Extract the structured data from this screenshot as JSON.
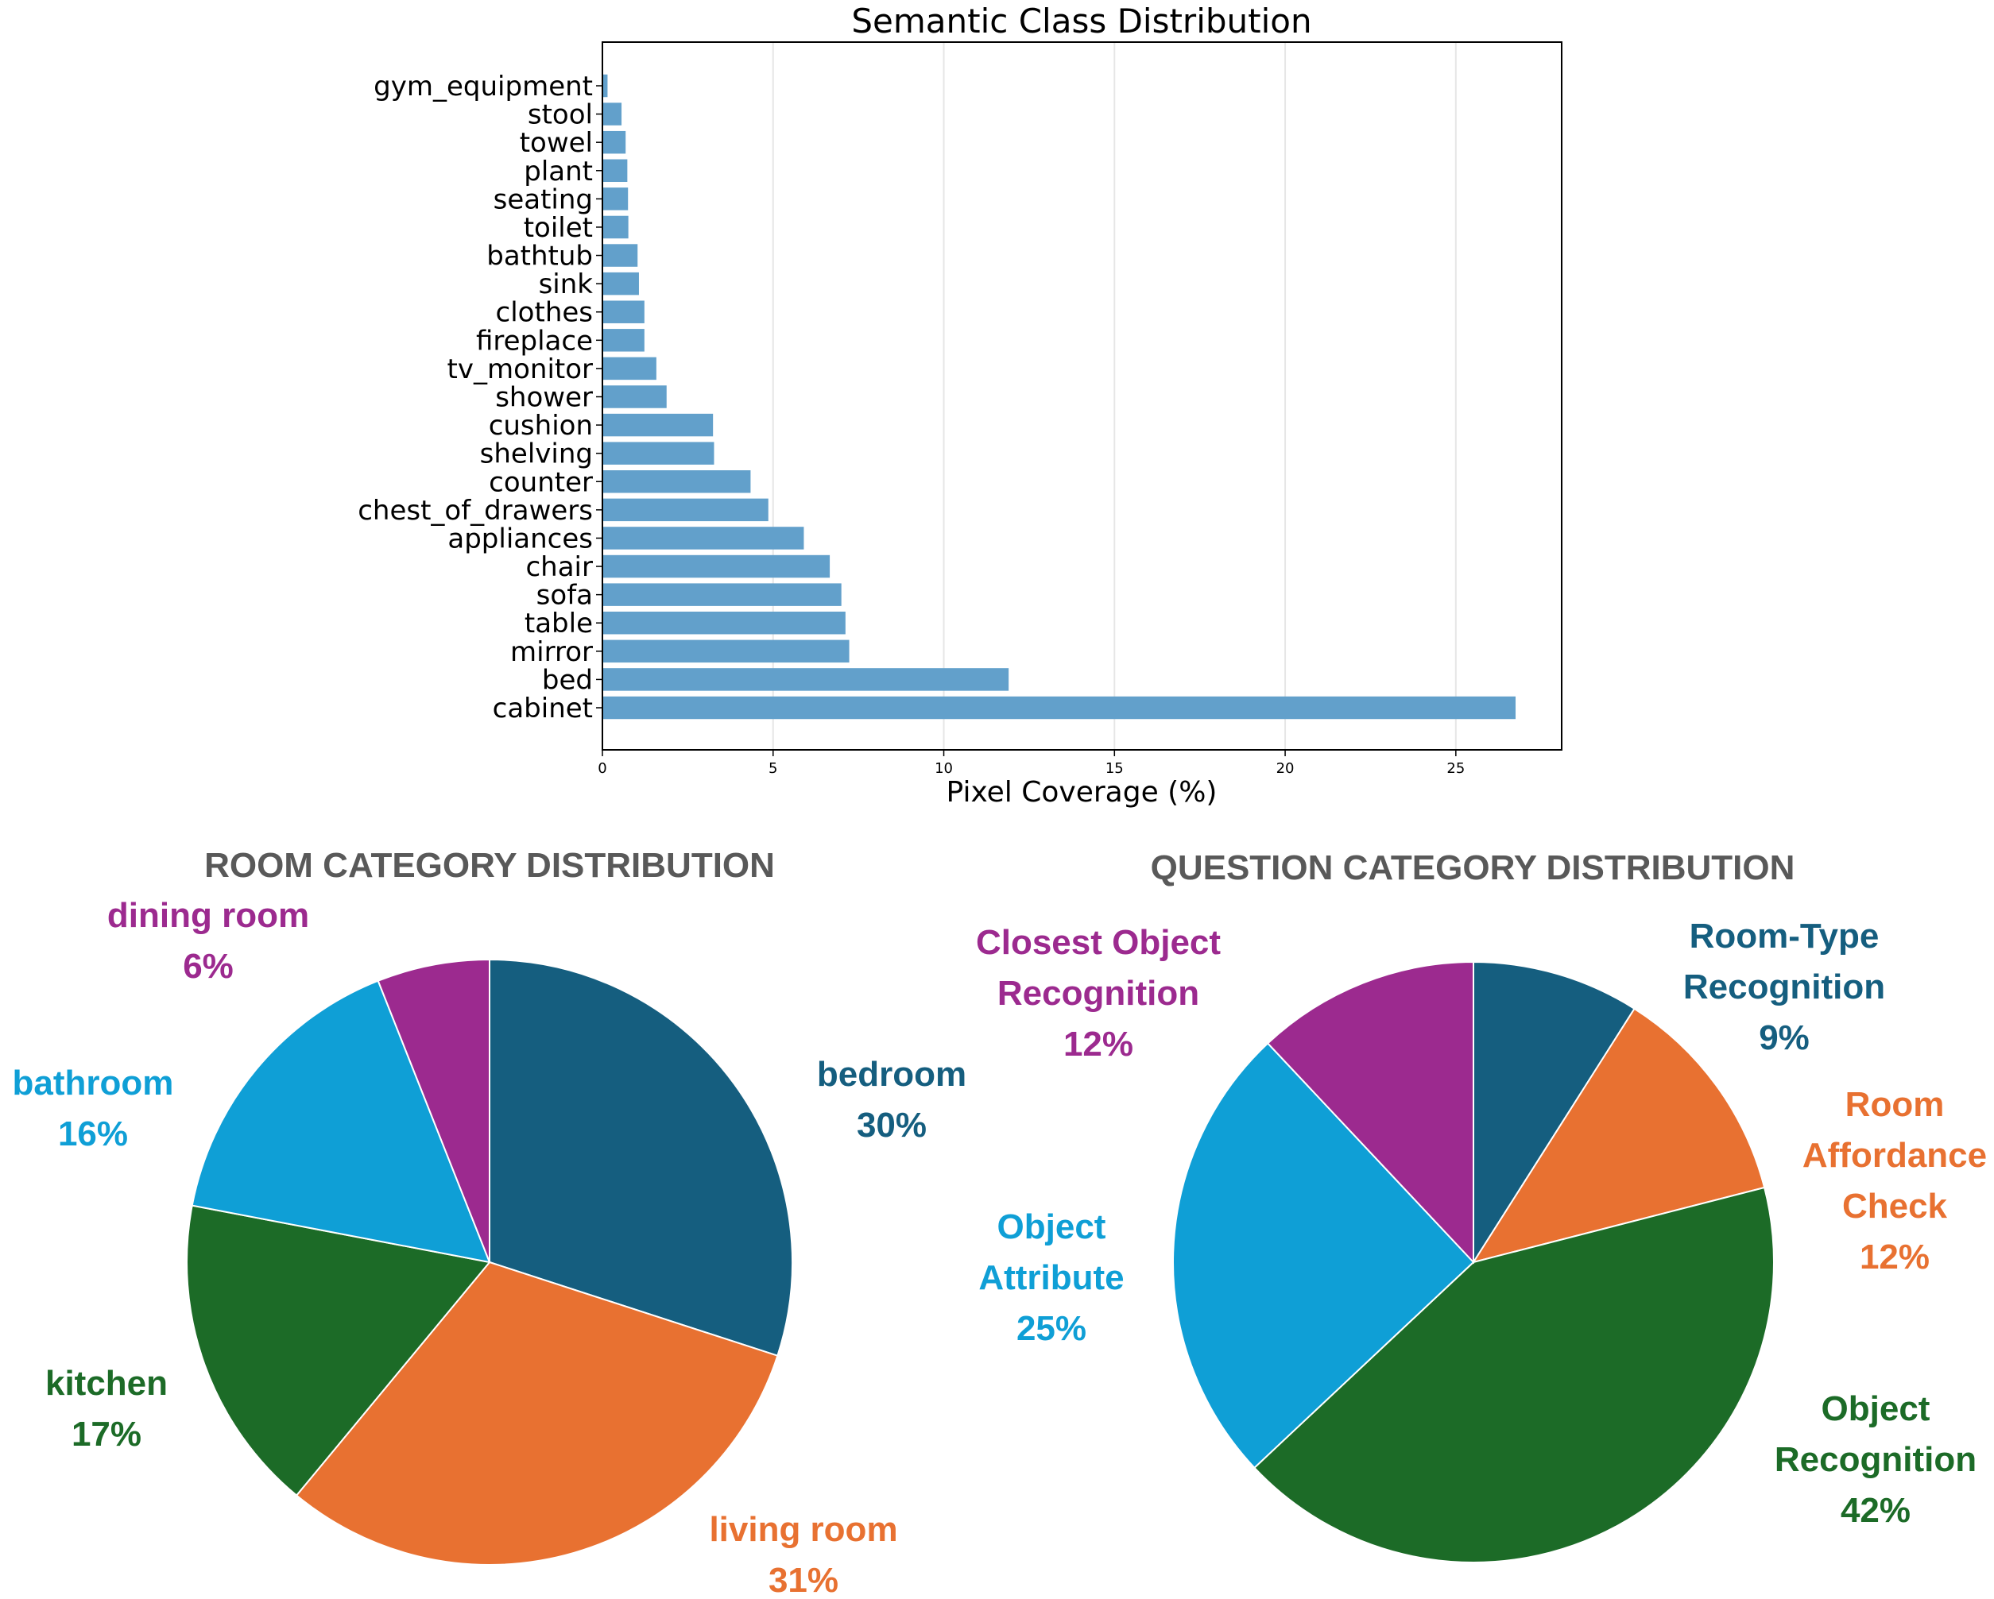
{
  "colors": {
    "bar": "#62A0CB",
    "dark_blue": "#155E7F",
    "orange": "#E87131",
    "green": "#1C6B27",
    "light_blue": "#0F9FD6",
    "purple": "#9C2A8F",
    "pie_title": "#595959"
  },
  "chart_data": [
    {
      "type": "bar",
      "orientation": "horizontal",
      "title": "Semantic Class Distribution",
      "xlabel": "Pixel Coverage (%)",
      "ylabel": "",
      "xlim": [
        0,
        28.1
      ],
      "xticks": [
        0,
        5,
        10,
        15,
        20,
        25
      ],
      "grid": "vertical",
      "categories": [
        "cabinet",
        "bed",
        "mirror",
        "table",
        "sofa",
        "chair",
        "appliances",
        "chest_of_drawers",
        "counter",
        "shelving",
        "cushion",
        "shower",
        "tv_monitor",
        "fireplace",
        "clothes",
        "sink",
        "bathtub",
        "toilet",
        "seating",
        "plant",
        "towel",
        "stool",
        "gym_equipment"
      ],
      "values": [
        26.75,
        11.9,
        7.23,
        7.12,
        7.0,
        6.66,
        5.9,
        4.86,
        4.34,
        3.27,
        3.24,
        1.88,
        1.58,
        1.23,
        1.23,
        1.07,
        1.03,
        0.76,
        0.75,
        0.73,
        0.68,
        0.56,
        0.15
      ]
    },
    {
      "type": "pie",
      "title": "ROOM CATEGORY DISTRIBUTION",
      "start": "top",
      "direction": "clockwise",
      "slices": [
        {
          "label": [
            "bedroom"
          ],
          "value": 30,
          "pct": "30%",
          "color": "#155E7F"
        },
        {
          "label": [
            "living room"
          ],
          "value": 31,
          "pct": "31%",
          "color": "#E87131"
        },
        {
          "label": [
            "kitchen"
          ],
          "value": 17,
          "pct": "17%",
          "color": "#1C6B27"
        },
        {
          "label": [
            "bathroom"
          ],
          "value": 16,
          "pct": "16%",
          "color": "#0F9FD6"
        },
        {
          "label": [
            "dining room"
          ],
          "value": 6,
          "pct": "6%",
          "color": "#9C2A8F"
        }
      ]
    },
    {
      "type": "pie",
      "title": "QUESTION CATEGORY DISTRIBUTION",
      "start": "top",
      "direction": "clockwise",
      "slices": [
        {
          "label": [
            "Room-Type",
            "Recognition"
          ],
          "value": 9,
          "pct": "9%",
          "color": "#155E7F"
        },
        {
          "label": [
            "Room",
            "Affordance",
            "Check"
          ],
          "value": 12,
          "pct": "12%",
          "color": "#E87131"
        },
        {
          "label": [
            "Object",
            "Recognition"
          ],
          "value": 42,
          "pct": "42%",
          "color": "#1C6B27"
        },
        {
          "label": [
            "Object",
            "Attribute"
          ],
          "value": 25,
          "pct": "25%",
          "color": "#0F9FD6"
        },
        {
          "label": [
            "Closest Object",
            "Recognition"
          ],
          "value": 12,
          "pct": "12%",
          "color": "#9C2A8F"
        }
      ]
    }
  ]
}
